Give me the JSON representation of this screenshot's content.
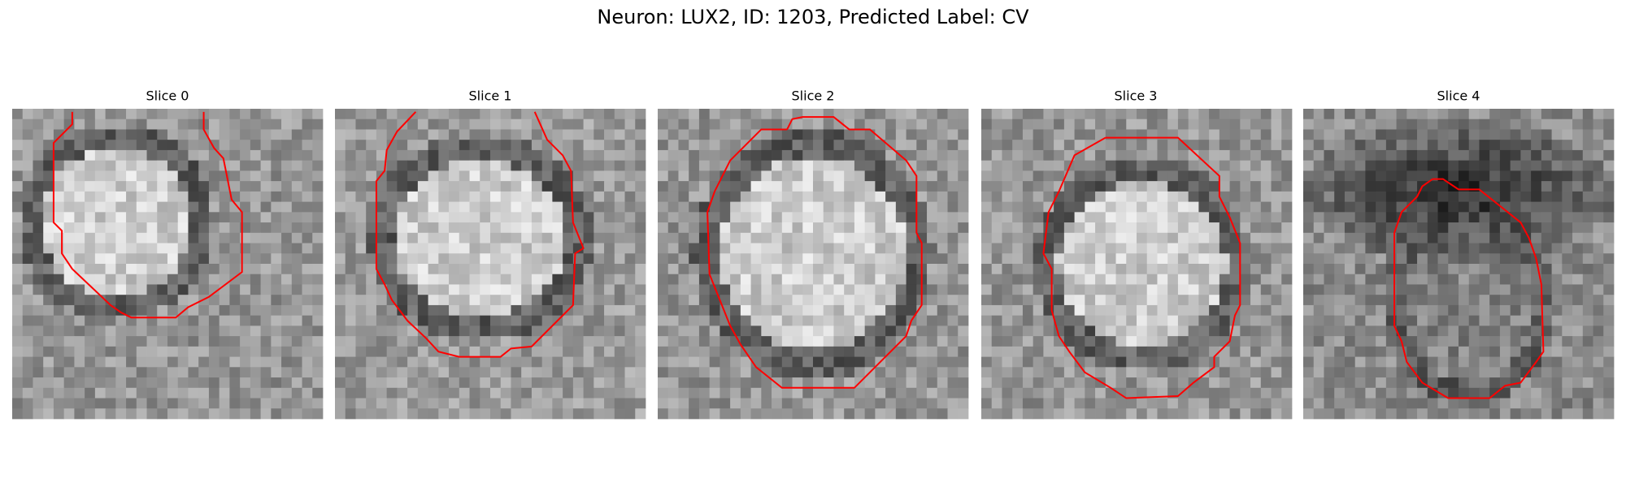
{
  "title": "Neuron: LUX2, ID: 1203, Predicted Label: CV",
  "panels": [
    {
      "title": "Slice 0"
    },
    {
      "title": "Slice 1"
    },
    {
      "title": "Slice 2"
    },
    {
      "title": "Slice 3"
    },
    {
      "title": "Slice 4"
    }
  ]
}
